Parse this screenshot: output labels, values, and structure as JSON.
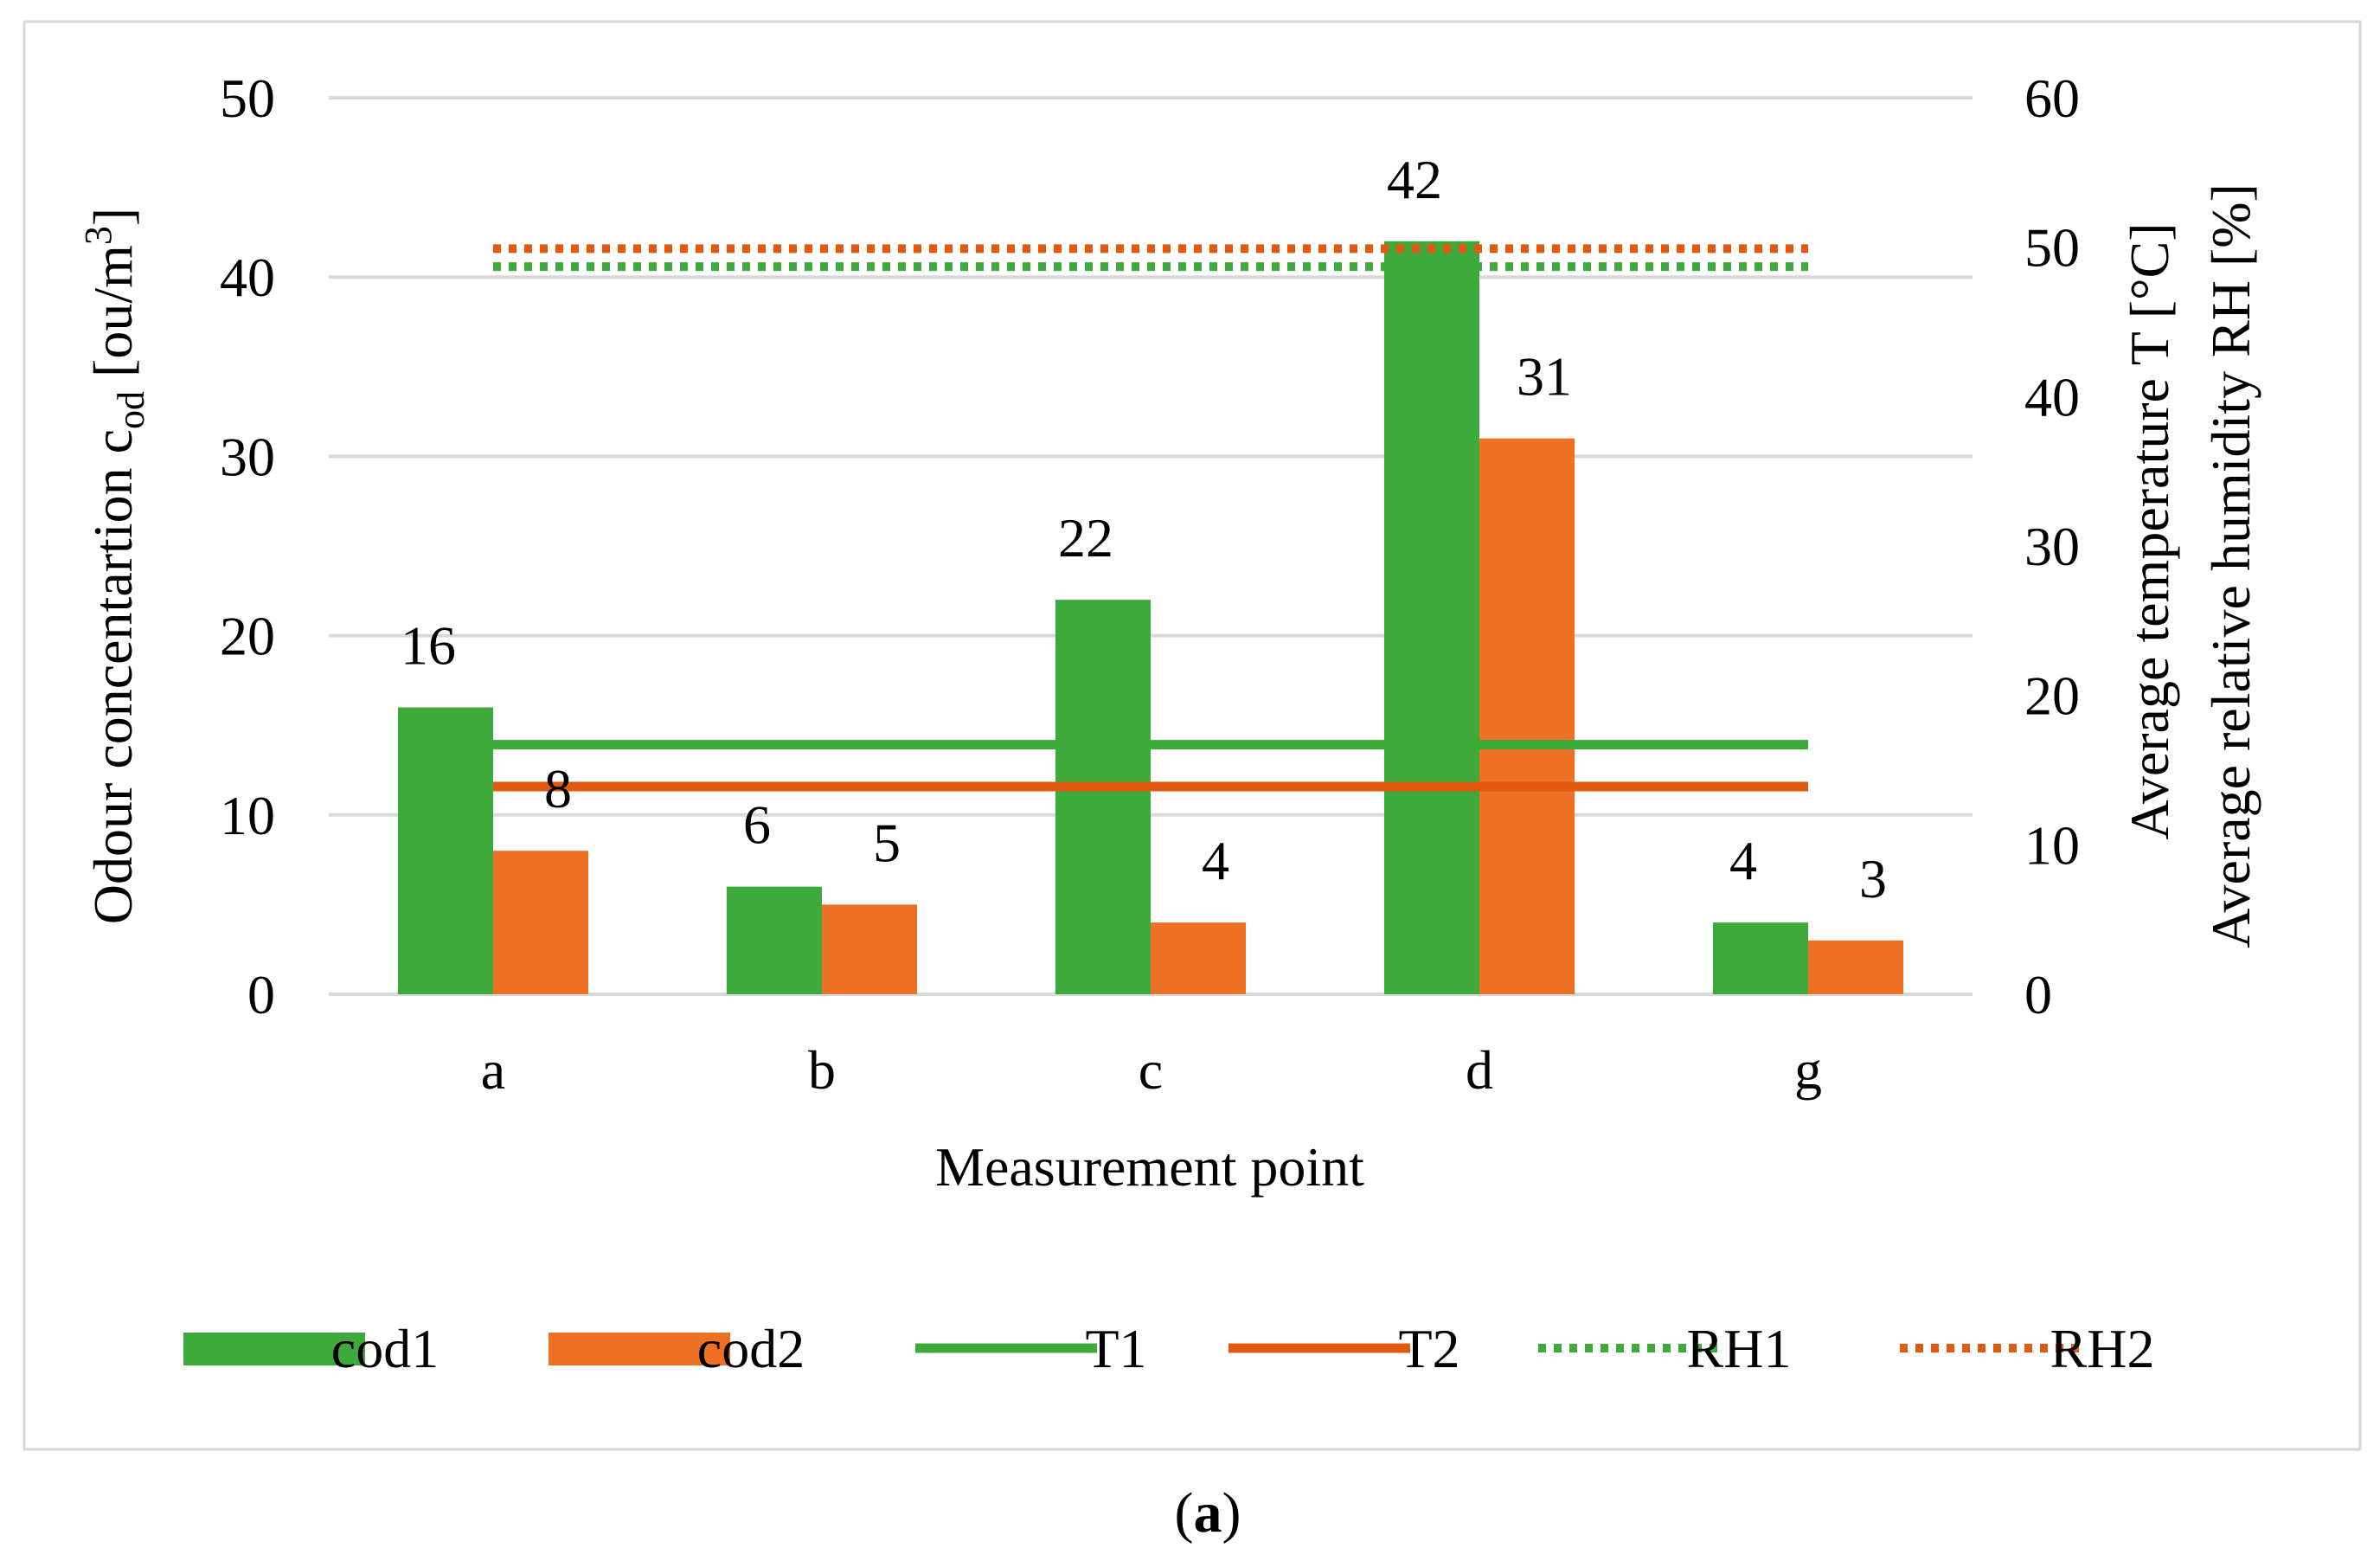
{
  "chart_data": {
    "type": "bar",
    "title": "",
    "xlabel": "Measurement point",
    "ylabel_main": "Odour concentartion c",
    "ylabel_sub": "od",
    "ylabel_unit_pre": " [ou/m",
    "ylabel_unit_sup": "3",
    "ylabel_unit_post": "]",
    "y2label_line1": "Average temperature T [°C]",
    "y2label_line2": "Average relative humidity RH [%]",
    "categories": [
      "a",
      "b",
      "c",
      "d",
      "g"
    ],
    "ylim": [
      0,
      50
    ],
    "yticks": [
      0,
      10,
      20,
      30,
      40,
      50
    ],
    "y2lim": [
      0,
      60
    ],
    "y2ticks": [
      0,
      10,
      20,
      30,
      40,
      50,
      60
    ],
    "grid": true,
    "legend_position": "bottom",
    "series": [
      {
        "name": "cod1",
        "type": "bar",
        "axis": "left",
        "color": "#3daa3b",
        "values": [
          16,
          6,
          22,
          42,
          4
        ]
      },
      {
        "name": "cod2",
        "type": "bar",
        "axis": "left",
        "color": "#ee7024",
        "values": [
          8,
          5,
          4,
          31,
          3
        ]
      },
      {
        "name": "T1",
        "type": "line",
        "axis": "right",
        "style": "solid",
        "color": "#3daa3b",
        "values": [
          16.7,
          16.7,
          16.7,
          16.7,
          16.7
        ]
      },
      {
        "name": "T2",
        "type": "line",
        "axis": "right",
        "style": "solid",
        "color": "#e25a12",
        "values": [
          13.9,
          13.9,
          13.9,
          13.9,
          13.9
        ]
      },
      {
        "name": "RH1",
        "type": "line",
        "axis": "right",
        "style": "dotted",
        "color": "#3daa3b",
        "values": [
          48.7,
          48.7,
          48.7,
          48.7,
          48.7
        ]
      },
      {
        "name": "RH2",
        "type": "line",
        "axis": "right",
        "style": "dotted",
        "color": "#e25a12",
        "values": [
          49.9,
          49.9,
          49.9,
          49.9,
          49.9
        ]
      }
    ]
  },
  "caption_open": "(",
  "caption_letter": "a",
  "caption_close": ")"
}
